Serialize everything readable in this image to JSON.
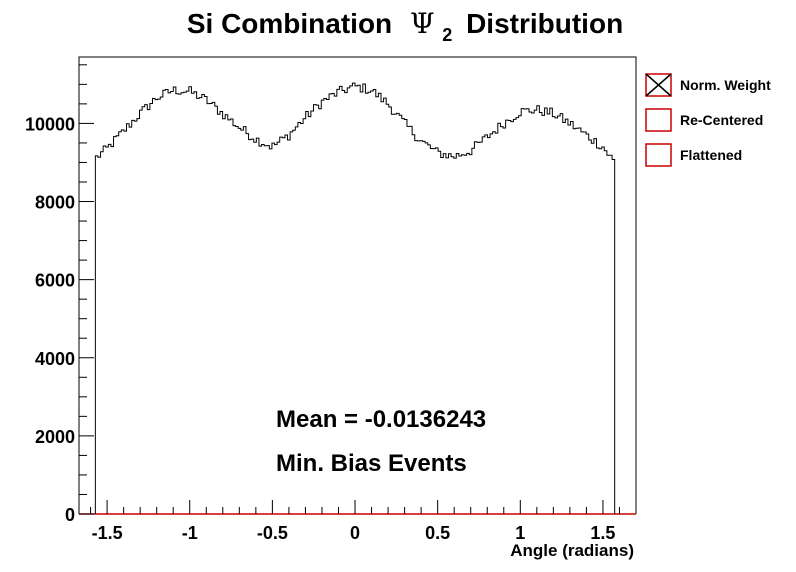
{
  "chart_data": {
    "type": "histogram",
    "title_prefix": "Si Combination",
    "title_psi": "Ψ",
    "title_sub": "2",
    "title_suffix": "Distribution",
    "xlabel": "Angle (radians)",
    "ylabel": "",
    "xlim": [
      -1.67,
      1.7
    ],
    "ylim": [
      0,
      11700
    ],
    "x_ticks": [
      -1.5,
      -1,
      -0.5,
      0,
      0.5,
      1,
      1.5
    ],
    "x_tick_labels": [
      "-1.5",
      "-1",
      "-0.5",
      "0",
      "0.5",
      "1",
      "1.5"
    ],
    "y_ticks": [
      0,
      2000,
      4000,
      6000,
      8000,
      10000
    ],
    "y_tick_labels": [
      "0",
      "2000",
      "4000",
      "6000",
      "8000",
      "10000"
    ],
    "x_range": [
      -1.571,
      1.571
    ],
    "bins": 200,
    "anchors": [
      [
        -1.571,
        9100
      ],
      [
        -1.5,
        9350
      ],
      [
        -1.4,
        9800
      ],
      [
        -1.3,
        10250
      ],
      [
        -1.2,
        10650
      ],
      [
        -1.1,
        10850
      ],
      [
        -1.0,
        10820
      ],
      [
        -0.9,
        10600
      ],
      [
        -0.8,
        10250
      ],
      [
        -0.7,
        9900
      ],
      [
        -0.6,
        9600
      ],
      [
        -0.5,
        9400
      ],
      [
        -0.4,
        9700
      ],
      [
        -0.3,
        10150
      ],
      [
        -0.2,
        10550
      ],
      [
        -0.1,
        10800
      ],
      [
        0.0,
        10950
      ],
      [
        0.1,
        10850
      ],
      [
        0.2,
        10500
      ],
      [
        0.3,
        10000
      ],
      [
        0.4,
        9550
      ],
      [
        0.5,
        9250
      ],
      [
        0.6,
        9150
      ],
      [
        0.7,
        9300
      ],
      [
        0.8,
        9650
      ],
      [
        0.9,
        10000
      ],
      [
        1.0,
        10300
      ],
      [
        1.1,
        10350
      ],
      [
        1.2,
        10250
      ],
      [
        1.3,
        10000
      ],
      [
        1.4,
        9700
      ],
      [
        1.5,
        9400
      ],
      [
        1.571,
        9000
      ]
    ],
    "series": [
      {
        "name": "Norm. Weight",
        "color": "#000000",
        "marker": "cross"
      },
      {
        "name": "Re-Centered",
        "color": "#cc0000",
        "marker": "box"
      },
      {
        "name": "Flattened",
        "color": "#cc0000",
        "marker": "box"
      }
    ],
    "annotations": [
      "Mean = -0.0136243",
      "Min. Bias Events"
    ],
    "legend_position": "right",
    "grid": false
  }
}
